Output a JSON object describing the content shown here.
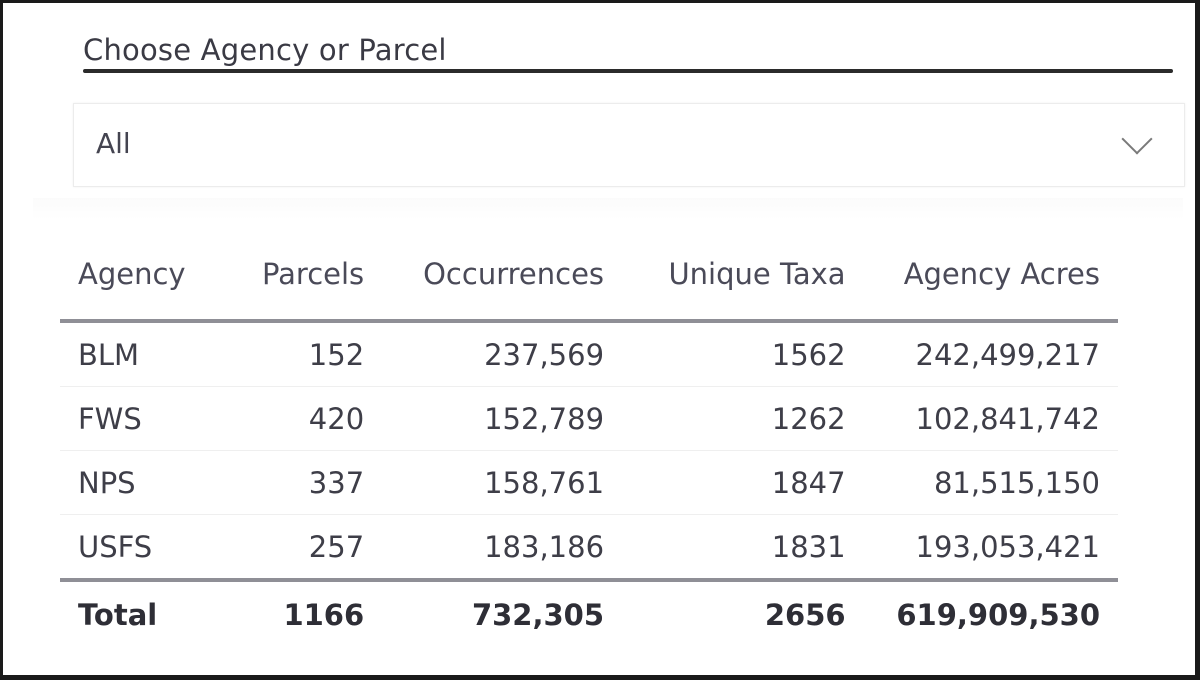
{
  "slicer": {
    "title": "Choose Agency or Parcel",
    "selected_value": "All",
    "chevron_icon": "chevron-down-icon"
  },
  "table": {
    "columns": [
      "Agency",
      "Parcels",
      "Occurrences",
      "Unique Taxa",
      "Agency Acres"
    ],
    "rows": [
      {
        "agency": "BLM",
        "parcels": "152",
        "occurrences": "237,569",
        "unique_taxa": "1562",
        "agency_acres": "242,499,217"
      },
      {
        "agency": "FWS",
        "parcels": "420",
        "occurrences": "152,789",
        "unique_taxa": "1262",
        "agency_acres": "102,841,742"
      },
      {
        "agency": "NPS",
        "parcels": "337",
        "occurrences": "158,761",
        "unique_taxa": "1847",
        "agency_acres": "81,515,150"
      },
      {
        "agency": "USFS",
        "parcels": "257",
        "occurrences": "183,186",
        "unique_taxa": "1831",
        "agency_acres": "193,053,421"
      }
    ],
    "total": {
      "label": "Total",
      "parcels": "1166",
      "occurrences": "732,305",
      "unique_taxa": "2656",
      "agency_acres": "619,909,530"
    }
  }
}
